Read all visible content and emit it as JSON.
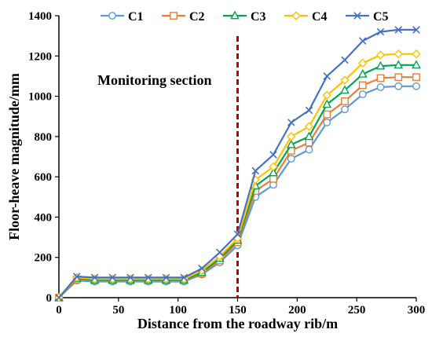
{
  "chart_data": {
    "type": "line",
    "xlabel": "Distance from the roadway rib/m",
    "ylabel": "Floor-heave magnitude/mm",
    "xlim": [
      0,
      300
    ],
    "ylim": [
      0,
      1400
    ],
    "x_ticks": [
      "0",
      "50",
      "100",
      "150",
      "200",
      "250",
      "300"
    ],
    "y_ticks": [
      "0",
      "200",
      "400",
      "600",
      "800",
      "1000",
      "1200",
      "1400"
    ],
    "grid": false,
    "legend_position": "top",
    "annotation": {
      "text": "Monitoring section",
      "x": 150,
      "color": "#c00000"
    },
    "x": [
      0,
      15,
      30,
      45,
      60,
      75,
      90,
      105,
      120,
      135,
      150,
      165,
      180,
      195,
      210,
      225,
      240,
      255,
      270,
      285,
      300
    ],
    "series": [
      {
        "name": "C1",
        "color": "#5b9bd5",
        "marker": "circle",
        "values": [
          0,
          85,
          80,
          80,
          80,
          80,
          80,
          80,
          115,
          175,
          260,
          500,
          560,
          690,
          735,
          870,
          935,
          1010,
          1045,
          1050,
          1050
        ]
      },
      {
        "name": "C2",
        "color": "#ed7d31",
        "marker": "square",
        "values": [
          0,
          90,
          85,
          85,
          85,
          85,
          85,
          85,
          120,
          185,
          275,
          530,
          590,
          730,
          770,
          910,
          975,
          1055,
          1090,
          1095,
          1095
        ]
      },
      {
        "name": "C3",
        "color": "#00a651",
        "marker": "triangle",
        "values": [
          0,
          95,
          88,
          88,
          88,
          88,
          88,
          88,
          125,
          195,
          285,
          555,
          620,
          760,
          800,
          960,
          1030,
          1110,
          1150,
          1155,
          1155
        ]
      },
      {
        "name": "C4",
        "color": "#ffc000",
        "marker": "diamond",
        "values": [
          0,
          100,
          93,
          93,
          93,
          93,
          93,
          93,
          135,
          205,
          295,
          585,
          650,
          800,
          850,
          1005,
          1080,
          1165,
          1205,
          1210,
          1210
        ]
      },
      {
        "name": "C5",
        "color": "#4472c4",
        "marker": "x",
        "values": [
          0,
          105,
          100,
          100,
          100,
          100,
          100,
          100,
          145,
          225,
          315,
          630,
          710,
          870,
          930,
          1100,
          1180,
          1275,
          1320,
          1330,
          1330
        ]
      }
    ]
  }
}
